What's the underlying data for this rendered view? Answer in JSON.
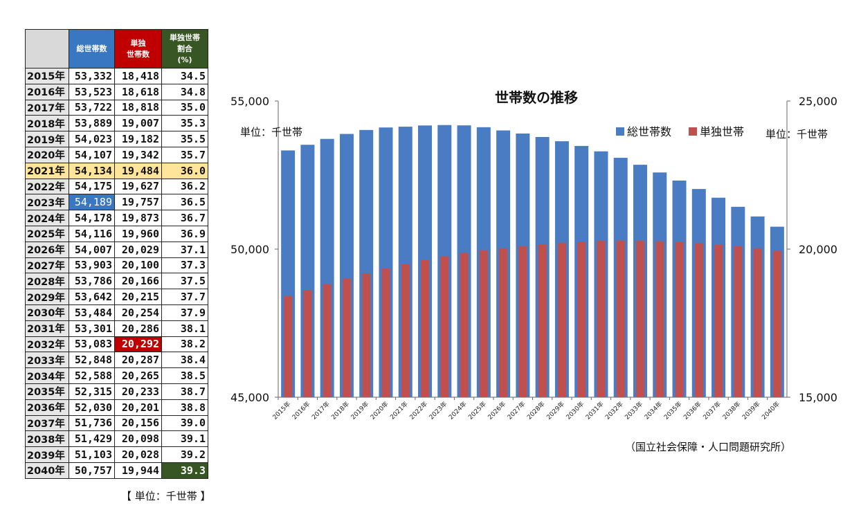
{
  "table": {
    "headers": {
      "corner": "",
      "total": "総世帯数",
      "single": [
        "単独",
        "世帯数"
      ],
      "ratio": [
        "単独世帯",
        "割合",
        "(%)"
      ]
    },
    "rows": [
      {
        "year": "2015年",
        "total": "53,332",
        "single": "18,418",
        "ratio": "34.5"
      },
      {
        "year": "2016年",
        "total": "53,523",
        "single": "18,618",
        "ratio": "34.8"
      },
      {
        "year": "2017年",
        "total": "53,722",
        "single": "18,818",
        "ratio": "35.0"
      },
      {
        "year": "2018年",
        "total": "53,889",
        "single": "19,007",
        "ratio": "35.3"
      },
      {
        "year": "2019年",
        "total": "54,023",
        "single": "19,182",
        "ratio": "35.5"
      },
      {
        "year": "2020年",
        "total": "54,107",
        "single": "19,342",
        "ratio": "35.7"
      },
      {
        "year": "2021年",
        "total": "54,134",
        "single": "19,484",
        "ratio": "36.0"
      },
      {
        "year": "2022年",
        "total": "54,175",
        "single": "19,627",
        "ratio": "36.2"
      },
      {
        "year": "2023年",
        "total": "54,189",
        "single": "19,757",
        "ratio": "36.5"
      },
      {
        "year": "2024年",
        "total": "54,178",
        "single": "19,873",
        "ratio": "36.7"
      },
      {
        "year": "2025年",
        "total": "54,116",
        "single": "19,960",
        "ratio": "36.9"
      },
      {
        "year": "2026年",
        "total": "54,007",
        "single": "20,029",
        "ratio": "37.1"
      },
      {
        "year": "2027年",
        "total": "53,903",
        "single": "20,100",
        "ratio": "37.3"
      },
      {
        "year": "2028年",
        "total": "53,786",
        "single": "20,166",
        "ratio": "37.5"
      },
      {
        "year": "2029年",
        "total": "53,642",
        "single": "20,215",
        "ratio": "37.7"
      },
      {
        "year": "2030年",
        "total": "53,484",
        "single": "20,254",
        "ratio": "37.9"
      },
      {
        "year": "2031年",
        "total": "53,301",
        "single": "20,286",
        "ratio": "38.1"
      },
      {
        "year": "2032年",
        "total": "53,083",
        "single": "20,292",
        "ratio": "38.2"
      },
      {
        "year": "2033年",
        "total": "52,848",
        "single": "20,287",
        "ratio": "38.4"
      },
      {
        "year": "2034年",
        "total": "52,588",
        "single": "20,265",
        "ratio": "38.5"
      },
      {
        "year": "2035年",
        "total": "52,315",
        "single": "20,233",
        "ratio": "38.7"
      },
      {
        "year": "2036年",
        "total": "52,030",
        "single": "20,201",
        "ratio": "38.8"
      },
      {
        "year": "2037年",
        "total": "51,736",
        "single": "20,156",
        "ratio": "39.0"
      },
      {
        "year": "2038年",
        "total": "51,429",
        "single": "20,098",
        "ratio": "39.1"
      },
      {
        "year": "2039年",
        "total": "51,103",
        "single": "20,028",
        "ratio": "39.2"
      },
      {
        "year": "2040年",
        "total": "50,757",
        "single": "19,944",
        "ratio": "39.3"
      }
    ],
    "highlighted_row": "2021年",
    "highlighted_total": "2023年",
    "highlighted_single": "2032年",
    "highlighted_ratio": "2040年",
    "unit_note": "【 単位：千世帯 】"
  },
  "source": "（国立社会保障・人口問題研究所）",
  "colors": {
    "total": "#4a7cc4",
    "single": "#c0504d",
    "table_total_header": "#3a77c2",
    "table_single_header": "#c00000",
    "table_ratio_header": "#375623",
    "highlight_row": "#ffe599"
  },
  "chart_data": {
    "type": "bar",
    "title": "世帯数の推移",
    "categories": [
      "2015年",
      "2016年",
      "2017年",
      "2018年",
      "2019年",
      "2020年",
      "2021年",
      "2022年",
      "2023年",
      "2024年",
      "2025年",
      "2026年",
      "2027年",
      "2028年",
      "2029年",
      "2030年",
      "2031年",
      "2032年",
      "2033年",
      "2034年",
      "2035年",
      "2036年",
      "2037年",
      "2038年",
      "2039年",
      "2040年"
    ],
    "series": [
      {
        "name": "総世帯数",
        "axis": "left",
        "values": [
          53332,
          53523,
          53722,
          53889,
          54023,
          54107,
          54134,
          54175,
          54189,
          54178,
          54116,
          54007,
          53903,
          53786,
          53642,
          53484,
          53301,
          53083,
          52848,
          52588,
          52315,
          52030,
          51736,
          51429,
          51103,
          50757
        ]
      },
      {
        "name": "単独世帯",
        "axis": "right",
        "values": [
          18418,
          18618,
          18818,
          19007,
          19182,
          19342,
          19484,
          19627,
          19757,
          19873,
          19960,
          20029,
          20100,
          20166,
          20215,
          20254,
          20286,
          20292,
          20287,
          20265,
          20233,
          20201,
          20156,
          20098,
          20028,
          19944
        ]
      }
    ],
    "left_axis": {
      "ylim": [
        45000,
        55000
      ],
      "ticks": [
        "45,000",
        "50,000",
        "55,000"
      ],
      "unit": "単位：千世帯"
    },
    "right_axis": {
      "ylim": [
        15000,
        25000
      ],
      "ticks": [
        "15,000",
        "20,000",
        "25,000"
      ],
      "unit": "単位：千世帯"
    },
    "legend": "top-right",
    "grid": false
  }
}
